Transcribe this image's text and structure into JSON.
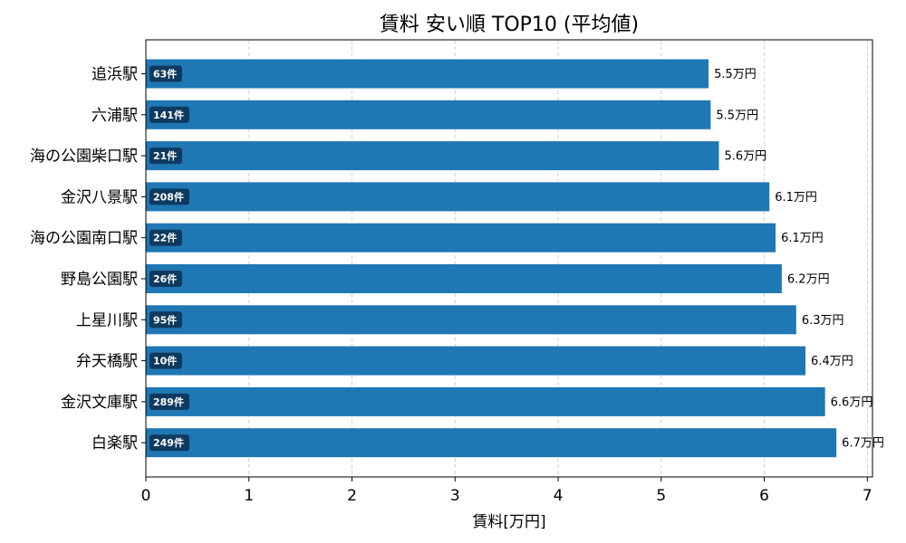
{
  "chart_data": {
    "type": "bar",
    "orientation": "horizontal",
    "title": "賃料 安い順 TOP10 (平均値)",
    "xlabel": "賃料[万円]",
    "ylabel": "",
    "xlim": [
      0,
      7.05
    ],
    "xticks": [
      0,
      1,
      2,
      3,
      4,
      5,
      6,
      7
    ],
    "grid": "vertical-dashed",
    "bar_color": "#1f77b4",
    "badge_color": "#0f3a5f",
    "categories": [
      "追浜駅",
      "六浦駅",
      "海の公園柴口駅",
      "金沢八景駅",
      "海の公園南口駅",
      "野島公園駅",
      "上星川駅",
      "弁天橋駅",
      "金沢文庫駅",
      "白楽駅"
    ],
    "values": [
      5.46,
      5.48,
      5.56,
      6.05,
      6.11,
      6.17,
      6.31,
      6.4,
      6.59,
      6.7
    ],
    "value_labels": [
      "5.5万円",
      "5.5万円",
      "5.6万円",
      "6.1万円",
      "6.1万円",
      "6.2万円",
      "6.3万円",
      "6.4万円",
      "6.6万円",
      "6.7万円"
    ],
    "counts": [
      "63件",
      "141件",
      "21件",
      "208件",
      "22件",
      "26件",
      "95件",
      "10件",
      "289件",
      "249件"
    ]
  }
}
